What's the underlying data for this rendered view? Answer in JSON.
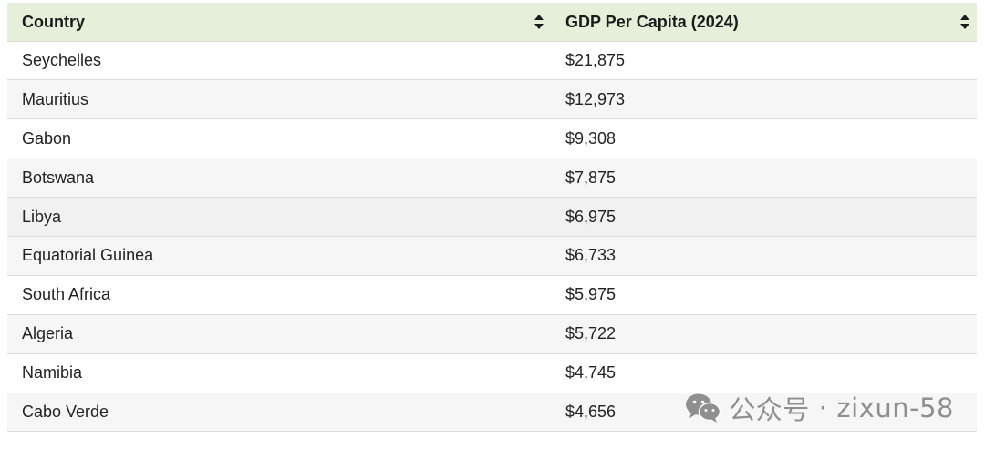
{
  "table": {
    "headers": {
      "country": "Country",
      "gdp": "GDP Per Capita (2024)"
    },
    "rows": [
      {
        "country": "Seychelles",
        "gdp": "$21,875"
      },
      {
        "country": "Mauritius",
        "gdp": "$12,973"
      },
      {
        "country": "Gabon",
        "gdp": "$9,308"
      },
      {
        "country": "Botswana",
        "gdp": "$7,875"
      },
      {
        "country": "Libya",
        "gdp": "$6,975"
      },
      {
        "country": "Equatorial Guinea",
        "gdp": "$6,733"
      },
      {
        "country": "South Africa",
        "gdp": "$5,975"
      },
      {
        "country": "Algeria",
        "gdp": "$5,722"
      },
      {
        "country": "Namibia",
        "gdp": "$4,745"
      },
      {
        "country": "Cabo Verde",
        "gdp": "$4,656"
      }
    ]
  },
  "watermark": {
    "icon": "wechat-icon",
    "brand": "公众号",
    "separator": "·",
    "account": "zixun-58"
  },
  "colors": {
    "header_bg": "#e6efda",
    "row_alt_bg": "#f6f6f6"
  }
}
